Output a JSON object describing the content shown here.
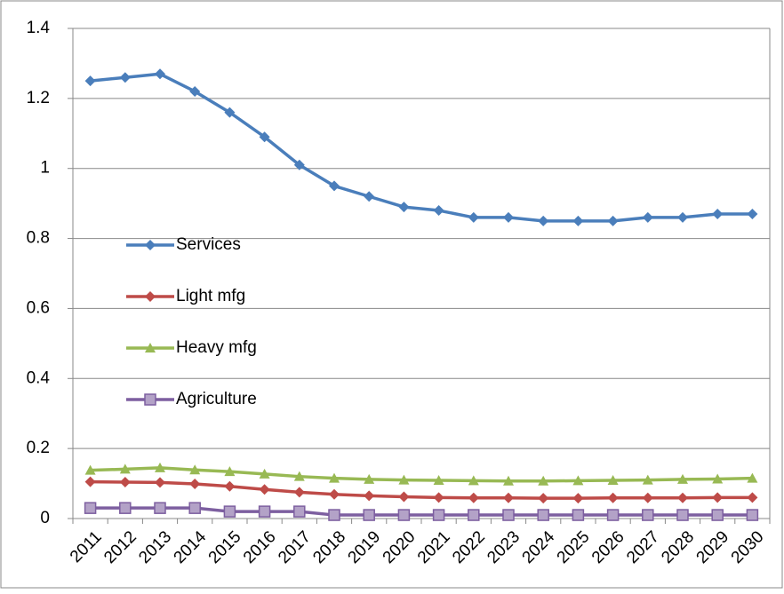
{
  "chart_data": {
    "type": "line",
    "categories": [
      "2011",
      "2012",
      "2013",
      "2014",
      "2015",
      "2016",
      "2017",
      "2018",
      "2019",
      "2020",
      "2021",
      "2022",
      "2023",
      "2024",
      "2025",
      "2026",
      "2027",
      "2028",
      "2029",
      "2030"
    ],
    "series": [
      {
        "name": "Services",
        "color": "#4a7ebb",
        "marker": "diamond",
        "values": [
          1.25,
          1.26,
          1.27,
          1.22,
          1.16,
          1.09,
          1.01,
          0.95,
          0.92,
          0.89,
          0.88,
          0.86,
          0.86,
          0.85,
          0.85,
          0.85,
          0.86,
          0.86,
          0.87,
          0.87
        ]
      },
      {
        "name": "Light mfg",
        "color": "#be4b48",
        "marker": "diamond",
        "values": [
          0.105,
          0.104,
          0.103,
          0.099,
          0.092,
          0.083,
          0.075,
          0.069,
          0.065,
          0.062,
          0.06,
          0.059,
          0.059,
          0.058,
          0.058,
          0.059,
          0.059,
          0.059,
          0.06,
          0.06
        ]
      },
      {
        "name": "Heavy mfg",
        "color": "#98b954",
        "marker": "triangle",
        "values": [
          0.138,
          0.141,
          0.145,
          0.139,
          0.134,
          0.127,
          0.12,
          0.115,
          0.112,
          0.11,
          0.109,
          0.108,
          0.107,
          0.107,
          0.108,
          0.109,
          0.11,
          0.112,
          0.113,
          0.115
        ]
      },
      {
        "name": "Agriculture",
        "color": "#7d5fa0",
        "marker": "square",
        "values": [
          0.03,
          0.03,
          0.03,
          0.03,
          0.02,
          0.02,
          0.02,
          0.01,
          0.01,
          0.01,
          0.01,
          0.01,
          0.01,
          0.01,
          0.01,
          0.01,
          0.01,
          0.01,
          0.01,
          0.01
        ]
      }
    ],
    "ylim": [
      0,
      1.4
    ],
    "yticks": [
      0,
      0.2,
      0.4,
      0.6,
      0.8,
      1,
      1.2,
      1.4
    ],
    "grid": true,
    "legend": "left"
  }
}
